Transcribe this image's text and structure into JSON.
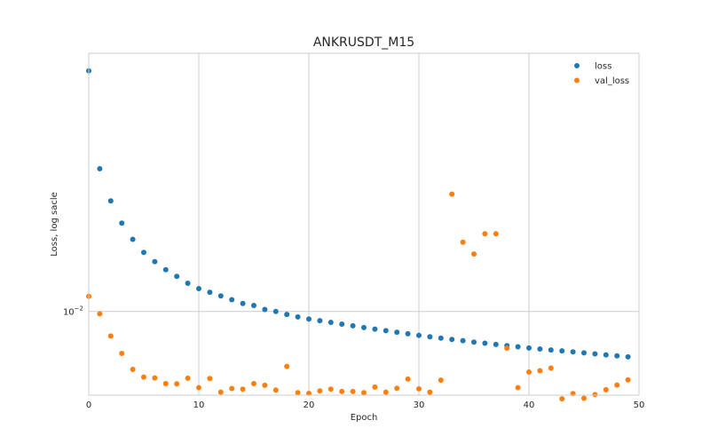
{
  "chart_data": {
    "type": "scatter",
    "title": "ANKRUSDT_M15",
    "xlabel": "Epoch",
    "ylabel": "Loss, log sacle",
    "yscale": "log",
    "xlim": [
      0,
      50
    ],
    "ylim": [
      0.0066,
      0.036
    ],
    "xticks": [
      0,
      10,
      20,
      30,
      40,
      50
    ],
    "yticks": [
      {
        "value": 0.01,
        "label_base": "10",
        "label_exp": "−2"
      }
    ],
    "grid": true,
    "legend_position": "top-right",
    "series": [
      {
        "name": "loss",
        "color": "#1f77b4",
        "x": [
          0,
          1,
          2,
          3,
          4,
          5,
          6,
          7,
          8,
          9,
          10,
          11,
          12,
          13,
          14,
          15,
          16,
          17,
          18,
          19,
          20,
          21,
          22,
          23,
          24,
          25,
          26,
          27,
          28,
          29,
          30,
          31,
          32,
          33,
          34,
          35,
          36,
          37,
          38,
          39,
          40,
          41,
          42,
          43,
          44,
          45,
          46,
          47,
          48,
          49
        ],
        "y": [
          0.033,
          0.0203,
          0.0173,
          0.0155,
          0.0143,
          0.0134,
          0.0128,
          0.0123,
          0.0119,
          0.0115,
          0.0112,
          0.011,
          0.0108,
          0.0106,
          0.0104,
          0.0103,
          0.0101,
          0.01,
          0.00985,
          0.00973,
          0.00963,
          0.00955,
          0.00947,
          0.00939,
          0.00931,
          0.00923,
          0.00916,
          0.00909,
          0.00902,
          0.00895,
          0.00888,
          0.00882,
          0.00876,
          0.0087,
          0.00865,
          0.00859,
          0.00854,
          0.00849,
          0.00844,
          0.00839,
          0.00834,
          0.0083,
          0.00826,
          0.00822,
          0.00818,
          0.00814,
          0.0081,
          0.00806,
          0.00802,
          0.00798
        ]
      },
      {
        "name": "val_loss",
        "color": "#ff7f0e",
        "x": [
          0,
          1,
          2,
          3,
          4,
          5,
          6,
          7,
          8,
          9,
          10,
          11,
          12,
          13,
          14,
          15,
          16,
          17,
          18,
          19,
          20,
          21,
          22,
          23,
          24,
          25,
          26,
          27,
          28,
          29,
          30,
          31,
          32,
          33,
          34,
          35,
          36,
          37,
          38,
          39,
          40,
          41,
          42,
          43,
          44,
          45,
          46,
          47,
          48,
          49
        ],
        "y": [
          0.01078,
          0.00988,
          0.00885,
          0.00812,
          0.0075,
          0.00722,
          0.00719,
          0.00699,
          0.00698,
          0.00718,
          0.00685,
          0.00717,
          0.0067,
          0.00682,
          0.0068,
          0.00699,
          0.00693,
          0.00677,
          0.00761,
          0.00668,
          0.00666,
          0.00674,
          0.0068,
          0.00672,
          0.00672,
          0.00668,
          0.00687,
          0.0067,
          0.00683,
          0.00715,
          0.00681,
          0.0067,
          0.00711,
          0.0179,
          0.0141,
          0.0133,
          0.0147,
          0.0147,
          0.00833,
          0.00685,
          0.0074,
          0.00745,
          0.00755,
          0.00648,
          0.00665,
          0.0065,
          0.00662,
          0.00678,
          0.00694,
          0.00712
        ]
      }
    ]
  }
}
